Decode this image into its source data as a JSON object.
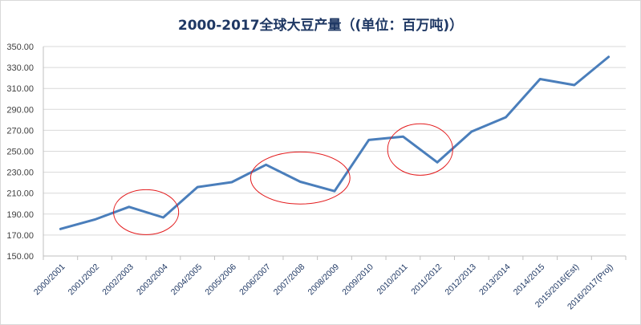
{
  "chart_data": {
    "type": "line",
    "title": "2000-2017全球大豆产量（(单位：百万吨)）",
    "xlabel": "",
    "ylabel": "",
    "ylim": [
      150,
      350
    ],
    "yticks": [
      "150.00",
      "170.00",
      "190.00",
      "210.00",
      "230.00",
      "250.00",
      "270.00",
      "290.00",
      "310.00",
      "330.00",
      "350.00"
    ],
    "categories": [
      "2000/2001",
      "2001/2002",
      "2002/2003",
      "2003/2004",
      "2004/2005",
      "2005/2006",
      "2006/2007",
      "2007/2008",
      "2008/2009",
      "2009/2010",
      "2010/2011",
      "2011/2012",
      "2012/2013",
      "2013/2014",
      "2014/2015",
      "2015/2016(Est)",
      "2016/2017(Proj)"
    ],
    "series": [
      {
        "values": [
          175.8,
          184.8,
          196.9,
          186.8,
          215.8,
          220.5,
          237.1,
          220.9,
          211.9,
          260.8,
          264.0,
          239.4,
          268.8,
          282.5,
          319.0,
          313.2,
          340.1
        ]
      }
    ],
    "grid": true,
    "legend": "none",
    "colors": {
      "line": "#4a7ebb",
      "annotation": "#e31a1c",
      "gridline": "#d9d9d9",
      "title": "#1f3864"
    },
    "annotations": [
      {
        "shape": "ellipse",
        "around": [
          "2002/2003",
          "2003/2004"
        ]
      },
      {
        "shape": "ellipse",
        "around": [
          "2006/2007",
          "2007/2008",
          "2008/2009"
        ]
      },
      {
        "shape": "ellipse",
        "around": [
          "2010/2011",
          "2011/2012"
        ]
      }
    ]
  }
}
